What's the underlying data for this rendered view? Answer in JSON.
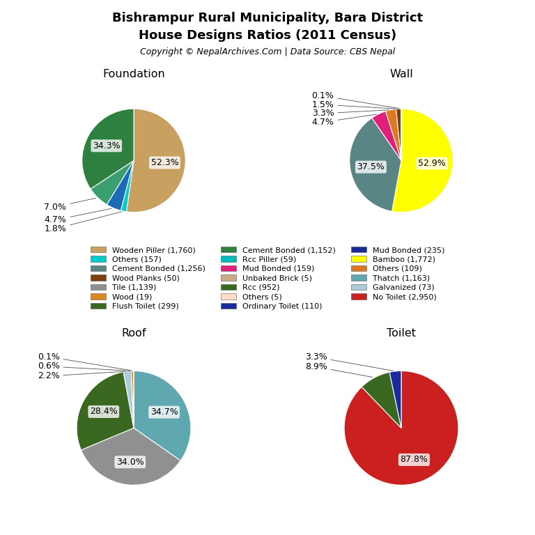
{
  "title": "Bishrampur Rural Municipality, Bara District",
  "subtitle": "House Designs Ratios (2011 Census)",
  "annotations": [
    "Copyright © NepalArchives.Com | Data Source: CBS Nepal"
  ],
  "chart_data": [
    {
      "type": "pie",
      "title": "Foundation",
      "values": [
        52.3,
        1.8,
        4.7,
        7.0,
        34.3
      ],
      "value_labels": [
        "52.3%",
        "1.8%",
        "4.7%",
        "7.0%",
        "34.3%"
      ],
      "colors": [
        "#c8a060",
        "#00cccc",
        "#1a6ab5",
        "#3a9e70",
        "#2d8040"
      ],
      "legend_labels": [
        "Wooden Piller (1,760)",
        "Cement Bonded (1,152)",
        "Mud Bonded (235)",
        "Others (157)",
        "Rcc Piller (59)"
      ],
      "legend_colors": [
        "#c8a060",
        "#2d8040",
        "#1a2a9a",
        "#00cccc",
        "#00bbbb"
      ]
    },
    {
      "type": "pie",
      "title": "Wall",
      "values": [
        52.9,
        37.5,
        4.7,
        3.3,
        1.5,
        0.1
      ],
      "value_labels": [
        "52.9%",
        "37.5%",
        "4.7%",
        "3.3%",
        "1.5%",
        "0.1%"
      ],
      "colors": [
        "#ffff00",
        "#5a8585",
        "#e0207a",
        "#e07820",
        "#7a4010",
        "#ccaa88"
      ],
      "legend_labels": [
        "Bamboo (1,772)",
        "Cement Bonded (1,256)",
        "Mud Bonded (159)",
        "Others (109)",
        "Wood Planks (50)",
        "Unbaked Brick (5)"
      ],
      "legend_colors": [
        "#ffff00",
        "#5a8585",
        "#e0207a",
        "#e07820",
        "#7a4010",
        "#ccaa88"
      ]
    },
    {
      "type": "pie",
      "title": "Roof",
      "values": [
        34.7,
        34.0,
        28.4,
        2.2,
        0.6,
        0.1
      ],
      "value_labels": [
        "34.7%",
        "34.0%",
        "28.4%",
        "2.2%",
        "0.6%",
        "0.1%"
      ],
      "colors": [
        "#5fa8b0",
        "#909090",
        "#3a6820",
        "#aaccdd",
        "#e08820",
        "#ffddcc"
      ],
      "legend_labels": [
        "Thatch (1,163)",
        "Tile (1,139)",
        "Rcc (952)",
        "Galvanized (73)",
        "Wood (19)",
        "Others (5)"
      ],
      "legend_colors": [
        "#5fa8b0",
        "#909090",
        "#3a6820",
        "#aaccdd",
        "#e08820",
        "#ffddcc"
      ]
    },
    {
      "type": "pie",
      "title": "Toilet",
      "values": [
        87.8,
        8.9,
        3.3
      ],
      "value_labels": [
        "87.8%",
        "8.9%",
        "3.3%"
      ],
      "colors": [
        "#cc2020",
        "#3a6820",
        "#1a2a9a"
      ],
      "legend_labels": [
        "No Toilet (2,950)",
        "Flush Toilet (299)",
        "Ordinary Toilet (110)"
      ],
      "legend_colors": [
        "#cc2020",
        "#3a6820",
        "#1a2a9a"
      ]
    }
  ]
}
